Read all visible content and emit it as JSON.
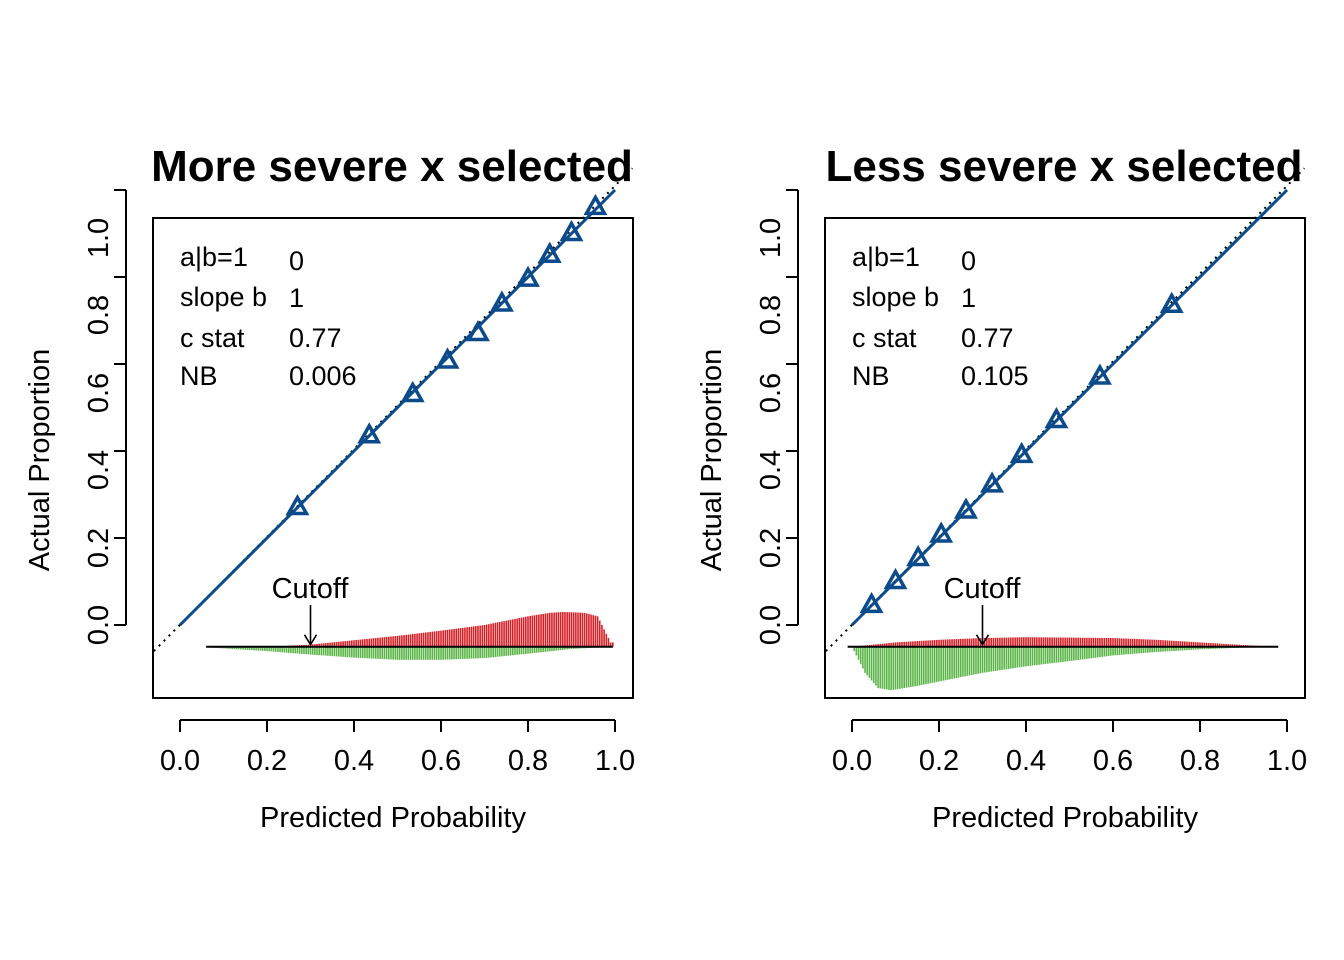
{
  "colors": {
    "calibration_line": "#0b4a8b",
    "markers": "#0b4a8b",
    "events_above": "#d51f26",
    "non_events_below": "#5ab546",
    "axis": "#000000"
  },
  "chart_data": [
    {
      "type": "calibration",
      "title": "More severe x selected",
      "xlabel": "Predicted Probability",
      "ylabel": "Actual Proportion",
      "xlim": [
        -0.06,
        1.04
      ],
      "ylim": [
        -0.19,
        1.05
      ],
      "xticks": [
        "0.0",
        "0.2",
        "0.4",
        "0.6",
        "0.8",
        "1.0"
      ],
      "yticks": [
        "0.0",
        "0.2",
        "0.4",
        "0.6",
        "0.8",
        "1.0"
      ],
      "reference_line": "dotted diagonal y = x",
      "calibration_curve": {
        "x": [
          0.0,
          0.3,
          0.6,
          1.0
        ],
        "y": [
          0.0,
          0.3,
          0.6,
          1.0
        ]
      },
      "marker_shape": "triangle",
      "markers": {
        "x": [
          0.27,
          0.435,
          0.535,
          0.615,
          0.685,
          0.74,
          0.8,
          0.85,
          0.9,
          0.955
        ],
        "y": [
          0.27,
          0.435,
          0.53,
          0.607,
          0.67,
          0.738,
          0.795,
          0.85,
          0.9,
          0.96
        ]
      },
      "stats": [
        {
          "label": "a|b=1",
          "value": "0"
        },
        {
          "label": "slope b",
          "value": "1"
        },
        {
          "label": "c stat",
          "value": "0.77"
        },
        {
          "label": "NB",
          "value": "0.006"
        }
      ],
      "cutoff": {
        "label": "Cutoff",
        "x": 0.3
      },
      "spike_histogram": {
        "baseline": -0.05,
        "range": [
          0.07,
          0.995
        ],
        "events_profile": {
          "x": [
            0.07,
            0.2,
            0.3,
            0.4,
            0.5,
            0.6,
            0.7,
            0.8,
            0.85,
            0.88,
            0.93,
            0.96,
            0.975,
            0.99
          ],
          "h": [
            0.0,
            0.0,
            0.005,
            0.015,
            0.025,
            0.037,
            0.05,
            0.07,
            0.078,
            0.08,
            0.078,
            0.07,
            0.04,
            0.01
          ]
        },
        "nonevents_profile": {
          "x": [
            0.07,
            0.2,
            0.3,
            0.4,
            0.5,
            0.6,
            0.7,
            0.8,
            0.9,
            0.995
          ],
          "h": [
            0.002,
            0.01,
            0.018,
            0.025,
            0.03,
            0.03,
            0.026,
            0.016,
            0.005,
            0.0
          ]
        }
      }
    },
    {
      "type": "calibration",
      "title": "Less severe x selected",
      "xlabel": "Predicted Probability",
      "ylabel": "Actual Proportion",
      "xlim": [
        -0.06,
        1.04
      ],
      "ylim": [
        -0.19,
        1.05
      ],
      "xticks": [
        "0.0",
        "0.2",
        "0.4",
        "0.6",
        "0.8",
        "1.0"
      ],
      "yticks": [
        "0.0",
        "0.2",
        "0.4",
        "0.6",
        "0.8",
        "1.0"
      ],
      "reference_line": "dotted diagonal y = x",
      "calibration_curve": {
        "x": [
          0.0,
          0.3,
          0.6,
          1.0
        ],
        "y": [
          0.0,
          0.3,
          0.6,
          1.0
        ]
      },
      "marker_shape": "triangle",
      "markers": {
        "x": [
          0.045,
          0.1,
          0.152,
          0.205,
          0.262,
          0.322,
          0.39,
          0.47,
          0.57,
          0.735
        ],
        "y": [
          0.045,
          0.1,
          0.153,
          0.207,
          0.262,
          0.322,
          0.39,
          0.47,
          0.57,
          0.735
        ]
      },
      "stats": [
        {
          "label": "a|b=1",
          "value": "0"
        },
        {
          "label": "slope b",
          "value": "1"
        },
        {
          "label": "c stat",
          "value": "0.77"
        },
        {
          "label": "NB",
          "value": "0.105"
        }
      ],
      "cutoff": {
        "label": "Cutoff",
        "x": 0.3
      },
      "spike_histogram": {
        "baseline": -0.05,
        "range": [
          0.0,
          0.98
        ],
        "events_profile": {
          "x": [
            0.0,
            0.05,
            0.1,
            0.2,
            0.3,
            0.4,
            0.5,
            0.6,
            0.7,
            0.8,
            0.9,
            0.98
          ],
          "h": [
            0.0,
            0.005,
            0.01,
            0.016,
            0.02,
            0.022,
            0.021,
            0.02,
            0.016,
            0.01,
            0.004,
            0.0
          ]
        },
        "nonevents_profile": {
          "x": [
            0.0,
            0.03,
            0.06,
            0.09,
            0.15,
            0.2,
            0.3,
            0.4,
            0.5,
            0.6,
            0.7,
            0.8,
            0.9,
            0.98
          ],
          "h": [
            0.0,
            0.06,
            0.095,
            0.1,
            0.09,
            0.08,
            0.06,
            0.045,
            0.033,
            0.02,
            0.012,
            0.006,
            0.002,
            0.0
          ]
        }
      }
    }
  ]
}
